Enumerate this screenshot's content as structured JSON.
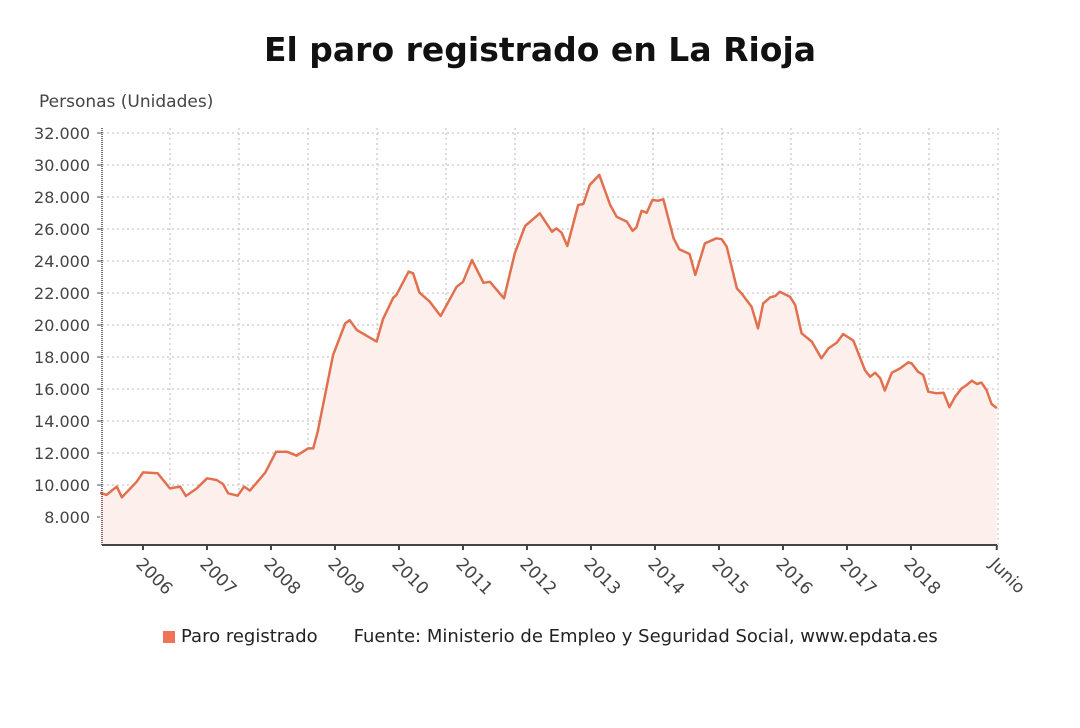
{
  "chart_data": {
    "type": "area",
    "title": "El paro registrado en La Rioja",
    "ylabel": "Personas (Unidades)",
    "xlabel": "",
    "ylim": [
      6250,
      32250
    ],
    "xlim": [
      2005.33,
      2019.34
    ],
    "yticks": [
      8000,
      10000,
      12000,
      14000,
      16000,
      18000,
      20000,
      22000,
      24000,
      26000,
      28000,
      30000,
      32000
    ],
    "ytick_labels": [
      "8.000",
      "10.000",
      "12.000",
      "14.000",
      "16.000",
      "18.000",
      "20.000",
      "22.000",
      "24.000",
      "26.000",
      "28.000",
      "30.000",
      "32.000"
    ],
    "xticks": [
      2006,
      2007,
      2008,
      2009,
      2010,
      2011,
      2012,
      2013,
      2014,
      2015,
      2016,
      2017,
      2018,
      2019.34
    ],
    "xtick_labels": [
      "2006",
      "2007",
      "2008",
      "2009",
      "2010",
      "2011",
      "2012",
      "2013",
      "2014",
      "2015",
      "2016",
      "2017",
      "2018",
      "Junio"
    ],
    "grid": true,
    "legend_position": "bottom",
    "colors": {
      "line": "#e2704f",
      "fill": "#fdf0ec",
      "legend": "#ef7356"
    },
    "series": [
      {
        "name": "Paro registrado",
        "points": [
          [
            2005.33,
            9520
          ],
          [
            2005.43,
            9380
          ],
          [
            2005.59,
            9900
          ],
          [
            2005.67,
            9230
          ],
          [
            2005.9,
            10200
          ],
          [
            2006.0,
            10790
          ],
          [
            2006.23,
            10730
          ],
          [
            2006.42,
            9790
          ],
          [
            2006.58,
            9900
          ],
          [
            2006.67,
            9310
          ],
          [
            2006.84,
            9790
          ],
          [
            2007.0,
            10420
          ],
          [
            2007.15,
            10310
          ],
          [
            2007.25,
            10060
          ],
          [
            2007.33,
            9480
          ],
          [
            2007.48,
            9330
          ],
          [
            2007.58,
            9900
          ],
          [
            2007.67,
            9650
          ],
          [
            2007.91,
            10770
          ],
          [
            2008.08,
            12080
          ],
          [
            2008.25,
            12080
          ],
          [
            2008.4,
            11830
          ],
          [
            2008.58,
            12290
          ],
          [
            2008.66,
            12290
          ],
          [
            2008.73,
            13330
          ],
          [
            2008.97,
            18130
          ],
          [
            2009.16,
            20100
          ],
          [
            2009.23,
            20300
          ],
          [
            2009.34,
            19690
          ],
          [
            2009.65,
            18960
          ],
          [
            2009.75,
            20370
          ],
          [
            2009.91,
            21700
          ],
          [
            2009.96,
            21880
          ],
          [
            2010.15,
            23330
          ],
          [
            2010.22,
            23230
          ],
          [
            2010.32,
            22020
          ],
          [
            2010.48,
            21460
          ],
          [
            2010.65,
            20560
          ],
          [
            2010.9,
            22390
          ],
          [
            2011.0,
            22700
          ],
          [
            2011.14,
            24060
          ],
          [
            2011.32,
            22640
          ],
          [
            2011.42,
            22700
          ],
          [
            2011.64,
            21670
          ],
          [
            2011.81,
            24480
          ],
          [
            2011.97,
            26190
          ],
          [
            2012.2,
            26980
          ],
          [
            2012.39,
            25830
          ],
          [
            2012.46,
            26040
          ],
          [
            2012.54,
            25770
          ],
          [
            2012.63,
            24940
          ],
          [
            2012.8,
            27500
          ],
          [
            2012.88,
            27560
          ],
          [
            2012.98,
            28750
          ],
          [
            2013.13,
            29380
          ],
          [
            2013.3,
            27500
          ],
          [
            2013.4,
            26770
          ],
          [
            2013.56,
            26460
          ],
          [
            2013.65,
            25890
          ],
          [
            2013.71,
            26100
          ],
          [
            2013.79,
            27140
          ],
          [
            2013.87,
            27020
          ],
          [
            2013.96,
            27810
          ],
          [
            2014.05,
            27770
          ],
          [
            2014.13,
            27860
          ],
          [
            2014.29,
            25420
          ],
          [
            2014.38,
            24730
          ],
          [
            2014.54,
            24440
          ],
          [
            2014.63,
            23130
          ],
          [
            2014.78,
            25100
          ],
          [
            2014.96,
            25420
          ],
          [
            2015.04,
            25360
          ],
          [
            2015.12,
            24900
          ],
          [
            2015.28,
            22290
          ],
          [
            2015.35,
            21980
          ],
          [
            2015.51,
            21140
          ],
          [
            2015.61,
            19790
          ],
          [
            2015.69,
            21350
          ],
          [
            2015.8,
            21730
          ],
          [
            2015.88,
            21810
          ],
          [
            2015.95,
            22080
          ],
          [
            2016.11,
            21770
          ],
          [
            2016.19,
            21250
          ],
          [
            2016.29,
            19480
          ],
          [
            2016.45,
            18960
          ],
          [
            2016.6,
            17920
          ],
          [
            2016.71,
            18540
          ],
          [
            2016.84,
            18900
          ],
          [
            2016.94,
            19440
          ],
          [
            2017.1,
            19020
          ],
          [
            2017.28,
            17190
          ],
          [
            2017.36,
            16770
          ],
          [
            2017.44,
            17020
          ],
          [
            2017.52,
            16670
          ],
          [
            2017.59,
            15900
          ],
          [
            2017.7,
            17020
          ],
          [
            2017.83,
            17290
          ],
          [
            2017.96,
            17670
          ],
          [
            2018.01,
            17600
          ],
          [
            2018.11,
            17080
          ],
          [
            2018.19,
            16880
          ],
          [
            2018.27,
            15830
          ],
          [
            2018.4,
            15730
          ],
          [
            2018.51,
            15770
          ],
          [
            2018.6,
            14860
          ],
          [
            2018.69,
            15520
          ],
          [
            2018.79,
            16040
          ],
          [
            2018.87,
            16250
          ],
          [
            2018.95,
            16520
          ],
          [
            2019.03,
            16310
          ],
          [
            2019.1,
            16400
          ],
          [
            2019.18,
            15940
          ],
          [
            2019.26,
            15060
          ],
          [
            2019.34,
            14800
          ]
        ]
      }
    ],
    "source": "Fuente: Ministerio de Empleo y Seguridad Social, www.epdata.es"
  }
}
